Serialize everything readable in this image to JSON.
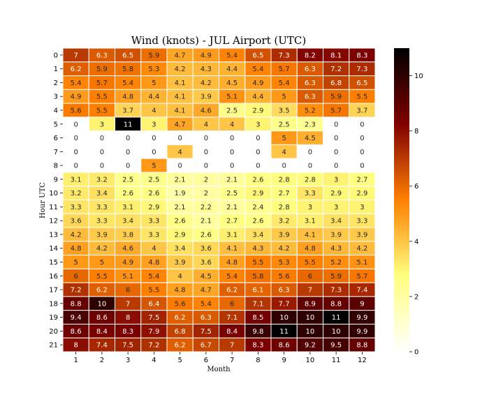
{
  "chart_data": {
    "type": "heatmap",
    "title": "Wind (knots) - JUL Airport (UTC)",
    "xlabel": "Month",
    "ylabel": "Hour UTC",
    "x_categories": [
      "1",
      "2",
      "3",
      "4",
      "5",
      "6",
      "7",
      "8",
      "9",
      "10",
      "11",
      "12"
    ],
    "y_categories": [
      "0",
      "1",
      "2",
      "3",
      "4",
      "5",
      "6",
      "7",
      "8",
      "9",
      "10",
      "11",
      "12",
      "13",
      "14",
      "15",
      "16",
      "17",
      "18",
      "19",
      "20",
      "21"
    ],
    "values": [
      [
        7,
        6.3,
        6.5,
        5.9,
        4.7,
        4.9,
        5.4,
        6.5,
        7.3,
        8.2,
        8.1,
        8.3
      ],
      [
        6.2,
        5.9,
        5.8,
        5.3,
        4.2,
        4.3,
        4.4,
        5.4,
        5.7,
        6.3,
        7.2,
        7.3
      ],
      [
        5.4,
        5.7,
        5.4,
        5,
        4.1,
        4.2,
        4.5,
        4.9,
        5.4,
        6.3,
        6.8,
        6.5
      ],
      [
        4.9,
        5.5,
        4.8,
        4.4,
        4.1,
        3.9,
        5.1,
        4.4,
        5,
        6.3,
        5.9,
        5.5
      ],
      [
        5.6,
        5.5,
        3.7,
        4,
        4.1,
        4.6,
        2.5,
        2.9,
        3.5,
        5.2,
        5.7,
        3.7
      ],
      [
        0,
        3,
        11,
        3,
        4.7,
        4,
        4,
        3,
        2.5,
        2.3,
        0,
        0
      ],
      [
        0,
        0,
        0,
        0,
        0,
        0,
        0,
        0,
        5,
        4.5,
        0,
        0
      ],
      [
        0,
        0,
        0,
        0,
        4,
        0,
        0,
        0,
        4,
        0,
        0,
        0
      ],
      [
        0,
        0,
        0,
        5,
        0,
        0,
        0,
        0,
        0,
        0,
        0,
        0
      ],
      [
        3.1,
        3.2,
        2.5,
        2.5,
        2.1,
        2,
        2.1,
        2.6,
        2.8,
        2.8,
        3,
        2.7
      ],
      [
        3.2,
        3.4,
        2.6,
        2.6,
        1.9,
        2,
        2.5,
        2.9,
        2.7,
        3.3,
        2.9,
        2.9
      ],
      [
        3.3,
        3.3,
        3.1,
        2.9,
        2.1,
        2.2,
        2.1,
        2.4,
        2.8,
        3,
        3,
        3
      ],
      [
        3.6,
        3.3,
        3.4,
        3.3,
        2.6,
        2.1,
        2.7,
        2.6,
        3.2,
        3.1,
        3.4,
        3.3
      ],
      [
        4.2,
        3.9,
        3.8,
        3.3,
        2.9,
        2.6,
        3.1,
        3.4,
        3.9,
        4.1,
        3.9,
        3.9
      ],
      [
        4.8,
        4.2,
        4.6,
        4,
        3.4,
        3.6,
        4.1,
        4.3,
        4.2,
        4.8,
        4.3,
        4.2
      ],
      [
        5,
        5,
        4.9,
        4.8,
        3.9,
        3.6,
        4.8,
        5.5,
        5.3,
        5.5,
        5.2,
        5.1
      ],
      [
        6,
        5.5,
        5.1,
        5.4,
        4,
        4.5,
        5.4,
        5.8,
        5.6,
        6,
        5.9,
        5.7
      ],
      [
        7.2,
        6.2,
        6,
        5.5,
        4.8,
        4.7,
        6.2,
        6.1,
        6.3,
        7,
        7.3,
        7.4
      ],
      [
        8.8,
        10,
        7,
        6.4,
        5.6,
        5.4,
        6,
        7.1,
        7.7,
        8.9,
        8.8,
        9
      ],
      [
        9.4,
        8.6,
        8,
        7.5,
        6.2,
        6.3,
        7.1,
        8.5,
        10,
        10,
        11,
        9.9
      ],
      [
        8.6,
        8.4,
        8.3,
        7.9,
        6.8,
        7.5,
        8.4,
        9.8,
        11,
        10,
        10,
        9.9
      ],
      [
        8,
        7.4,
        7.5,
        7.2,
        6.2,
        6.7,
        7,
        8.3,
        8.6,
        9.2,
        9.5,
        8.8
      ]
    ],
    "colormap": "afmhot_r",
    "vmin": 0,
    "vmax": 11,
    "colorbar_ticks": [
      "0",
      "2",
      "4",
      "6",
      "8",
      "10"
    ],
    "grid": false,
    "legend": "colorbar-right"
  }
}
